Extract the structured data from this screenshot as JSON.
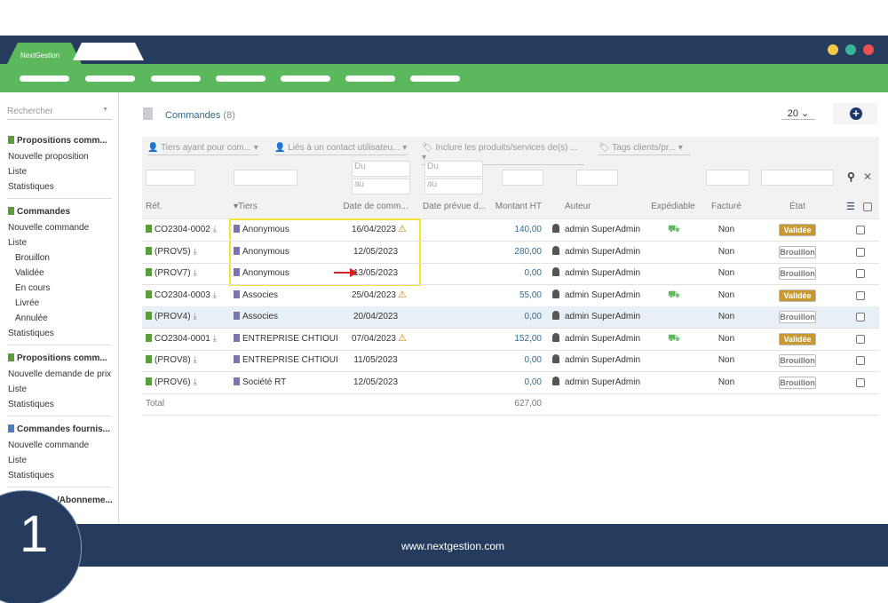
{
  "app": {
    "brand": "NextGestion",
    "footer": "www.nextgestion.com",
    "badge": "1"
  },
  "sidebar": {
    "search": "Rechercher",
    "sections": [
      {
        "title": "Propositions comm...",
        "items": [
          "Nouvelle proposition",
          "Liste",
          "Statistiques"
        ]
      },
      {
        "title": "Commandes",
        "items": [
          "Nouvelle commande",
          "Liste",
          "Brouillon",
          "Validée",
          "En cours",
          "Livrée",
          "Annulée",
          "Statistiques"
        ]
      },
      {
        "title": "Propositions comm...",
        "items": [
          "Nouvelle demande de prix",
          "Liste",
          "Statistiques"
        ]
      },
      {
        "title": "Commandes fournis...",
        "items": [
          "Nouvelle commande",
          "Liste",
          "Statistiques"
        ]
      },
      {
        "title": "/Abonneme...",
        "items": []
      }
    ]
  },
  "header": {
    "title": "Commandes",
    "count": "(8)",
    "per_page": "20"
  },
  "filters": {
    "tiers": "Tiers ayant pour com...",
    "contact": "Liés à un contact utilisateu...",
    "products": "Inclure les produits/services de(s) ...",
    "tags": "Tags clients/pr...",
    "date_from": "Du",
    "date_to": "au",
    "due_from": "Du",
    "due_to": "au"
  },
  "table": {
    "columns": [
      "Réf.",
      "Tiers",
      "Date de comm...",
      "Date prévue d...",
      "Montant HT",
      "Auteur",
      "Expédiable",
      "Facturé",
      "État"
    ],
    "rows": [
      {
        "ref": "CO2304-0002",
        "tiers": "Anonymous",
        "date": "16/04/2023",
        "warning": true,
        "amount": "140,00",
        "author": "admin SuperAdmin",
        "shippable": true,
        "invoiced": "Non",
        "status": "Validée",
        "status_color": "#c8992e",
        "status_text_color": "#ffffff"
      },
      {
        "ref": "(PROV5)",
        "tiers": "Anonymous",
        "date": "12/05/2023",
        "warning": false,
        "amount": "280,00",
        "author": "admin SuperAdmin",
        "shippable": false,
        "invoiced": "Non",
        "status": "Brouillon",
        "status_color": "#ffffff",
        "status_text_color": "#777777"
      },
      {
        "ref": "(PROV7)",
        "tiers": "Anonymous",
        "date": "13/05/2023",
        "warning": false,
        "amount": "0,00",
        "author": "admin SuperAdmin",
        "shippable": false,
        "invoiced": "Non",
        "status": "Brouillon",
        "status_color": "#ffffff",
        "status_text_color": "#777777"
      },
      {
        "ref": "CO2304-0003",
        "tiers": "Associes",
        "date": "25/04/2023",
        "warning": true,
        "amount": "55,00",
        "author": "admin SuperAdmin",
        "shippable": true,
        "invoiced": "Non",
        "status": "Validée",
        "status_color": "#c8992e",
        "status_text_color": "#ffffff"
      },
      {
        "ref": "(PROV4)",
        "tiers": "Associes",
        "date": "20/04/2023",
        "warning": false,
        "amount": "0,00",
        "author": "admin SuperAdmin",
        "shippable": false,
        "invoiced": "Non",
        "status": "Brouillon",
        "status_color": "#ffffff",
        "status_text_color": "#777777"
      },
      {
        "ref": "CO2304-0001",
        "tiers": "ENTREPRISE CHTIOUI",
        "date": "07/04/2023",
        "warning": true,
        "amount": "152,00",
        "author": "admin SuperAdmin",
        "shippable": true,
        "invoiced": "Non",
        "status": "Validée",
        "status_color": "#c8992e",
        "status_text_color": "#ffffff"
      },
      {
        "ref": "(PROV8)",
        "tiers": "ENTREPRISE CHTIOUI",
        "date": "11/05/2023",
        "warning": false,
        "amount": "0,00",
        "author": "admin SuperAdmin",
        "shippable": false,
        "invoiced": "Non",
        "status": "Brouillon",
        "status_color": "#ffffff",
        "status_text_color": "#777777"
      },
      {
        "ref": "(PROV6)",
        "tiers": "Société RT",
        "date": "12/05/2023",
        "warning": false,
        "amount": "0,00",
        "author": "admin SuperAdmin",
        "shippable": false,
        "invoiced": "Non",
        "status": "Brouillon",
        "status_color": "#ffffff",
        "status_text_color": "#777777"
      }
    ],
    "total_label": "Total",
    "total": "627,00"
  }
}
